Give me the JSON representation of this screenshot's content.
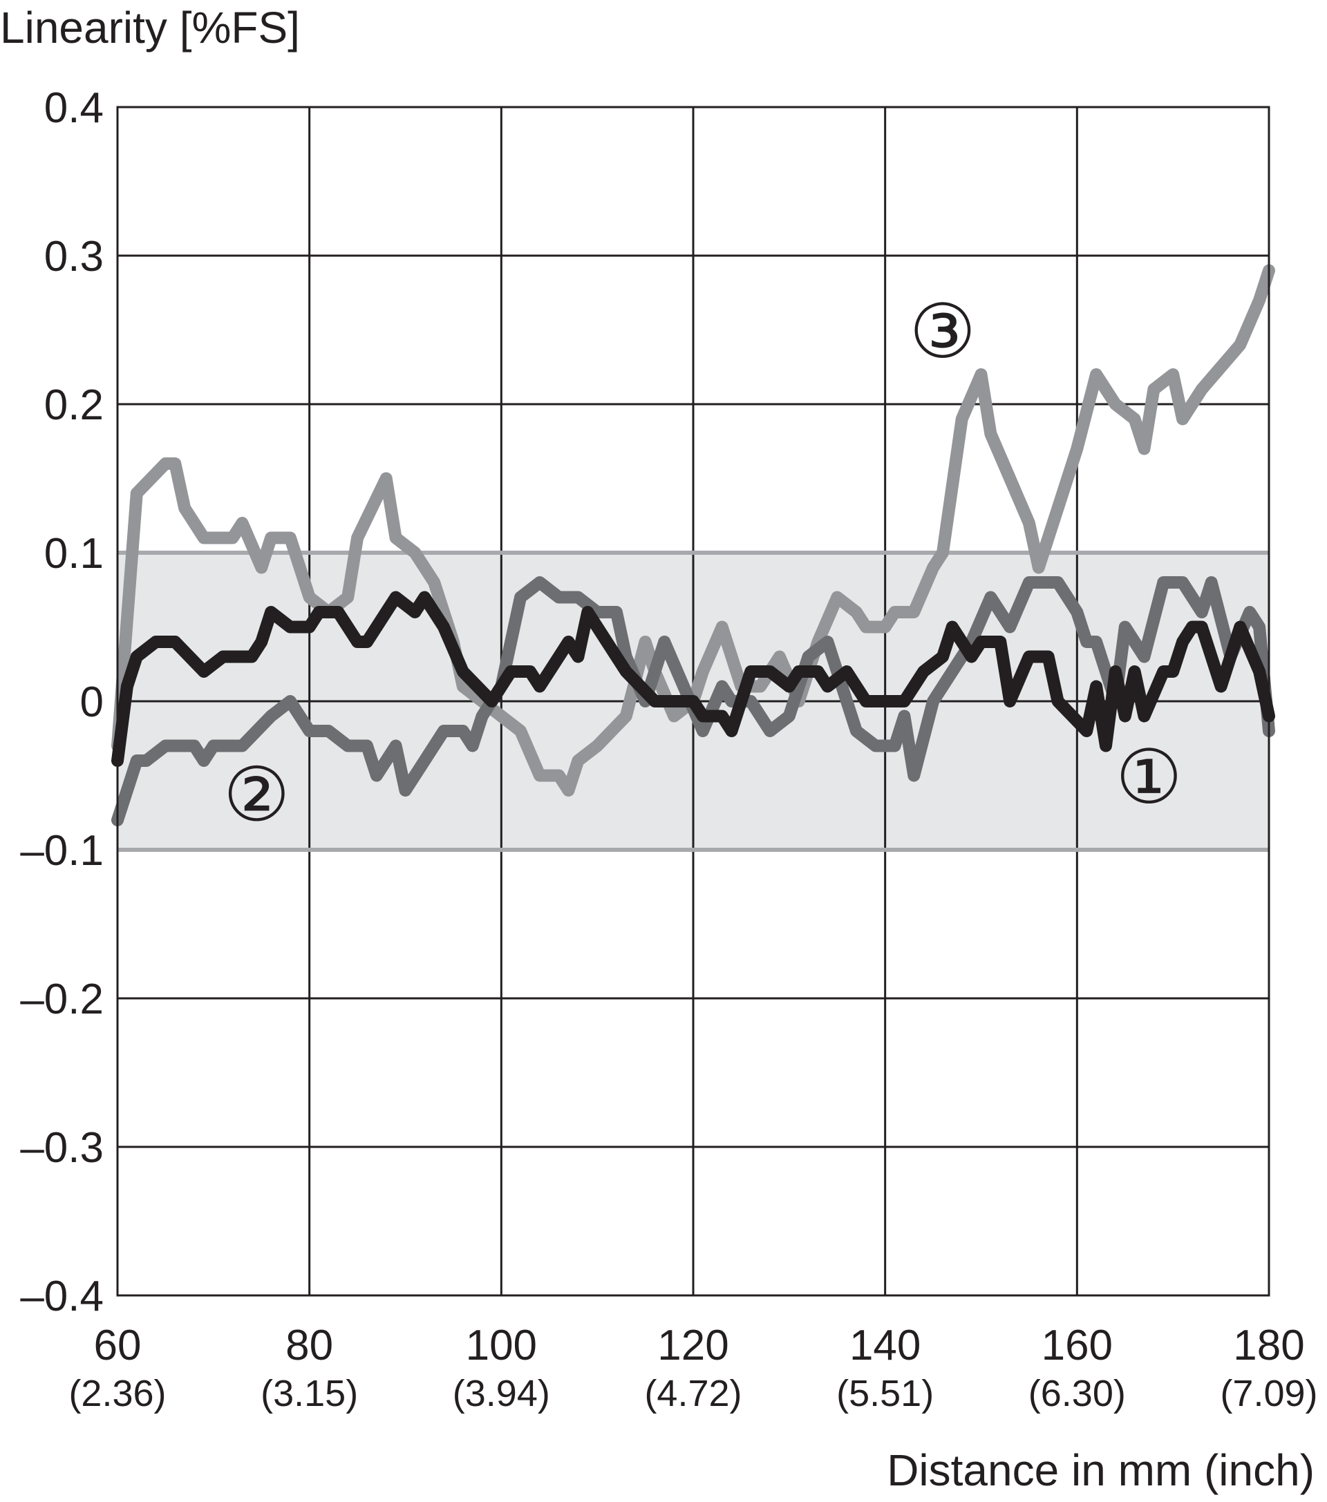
{
  "chart_data": {
    "type": "line",
    "ylabel": "Linearity [%FS]",
    "xlabel": "Distance in mm (inch)",
    "xlim": [
      60,
      180
    ],
    "ylim": [
      -0.4,
      0.4
    ],
    "x_ticks": [
      {
        "value": 60,
        "label": "60",
        "sublabel": "(2.36)"
      },
      {
        "value": 80,
        "label": "80",
        "sublabel": "(3.15)"
      },
      {
        "value": 100,
        "label": "100",
        "sublabel": "(3.94)"
      },
      {
        "value": 120,
        "label": "120",
        "sublabel": "(4.72)"
      },
      {
        "value": 140,
        "label": "140",
        "sublabel": "(5.51)"
      },
      {
        "value": 160,
        "label": "160",
        "sublabel": "(6.30)"
      },
      {
        "value": 180,
        "label": "180",
        "sublabel": "(7.09)"
      }
    ],
    "y_ticks": [
      {
        "value": 0.4,
        "label": "0.4"
      },
      {
        "value": 0.3,
        "label": "0.3"
      },
      {
        "value": 0.2,
        "label": "0.2"
      },
      {
        "value": 0.1,
        "label": "0.1"
      },
      {
        "value": 0,
        "label": "0"
      },
      {
        "value": -0.1,
        "label": "–0.1"
      },
      {
        "value": -0.2,
        "label": "–0.2"
      },
      {
        "value": -0.3,
        "label": "–0.3"
      },
      {
        "value": -0.4,
        "label": "–0.4"
      }
    ],
    "grid": true,
    "tolerance_band": {
      "y_min": -0.1,
      "y_max": 0.1,
      "fill": "#e6e7e8",
      "edge": "#a7a9ac"
    },
    "series": [
      {
        "marker": "③",
        "label_at": {
          "x": 146,
          "y": 0.245
        },
        "color": "#939598",
        "points": [
          [
            60,
            -0.03
          ],
          [
            62,
            0.14
          ],
          [
            65,
            0.16
          ],
          [
            66,
            0.16
          ],
          [
            67,
            0.13
          ],
          [
            69,
            0.11
          ],
          [
            72,
            0.11
          ],
          [
            73,
            0.12
          ],
          [
            75,
            0.09
          ],
          [
            76,
            0.11
          ],
          [
            78,
            0.11
          ],
          [
            80,
            0.07
          ],
          [
            82,
            0.06
          ],
          [
            84,
            0.07
          ],
          [
            85,
            0.11
          ],
          [
            88,
            0.15
          ],
          [
            89,
            0.11
          ],
          [
            91,
            0.1
          ],
          [
            93,
            0.08
          ],
          [
            95,
            0.04
          ],
          [
            96,
            0.01
          ],
          [
            98,
            0.0
          ],
          [
            100,
            -0.01
          ],
          [
            102,
            -0.02
          ],
          [
            104,
            -0.05
          ],
          [
            106,
            -0.05
          ],
          [
            107,
            -0.06
          ],
          [
            108,
            -0.04
          ],
          [
            110,
            -0.03
          ],
          [
            113,
            -0.01
          ],
          [
            115,
            0.04
          ],
          [
            116,
            0.02
          ],
          [
            118,
            -0.01
          ],
          [
            120,
            0.0
          ],
          [
            121,
            0.02
          ],
          [
            123,
            0.05
          ],
          [
            125,
            0.01
          ],
          [
            127,
            0.01
          ],
          [
            129,
            0.03
          ],
          [
            131,
            0.0
          ],
          [
            133,
            0.04
          ],
          [
            135,
            0.07
          ],
          [
            137,
            0.06
          ],
          [
            138,
            0.05
          ],
          [
            140,
            0.05
          ],
          [
            141,
            0.06
          ],
          [
            143,
            0.06
          ],
          [
            145,
            0.09
          ],
          [
            146,
            0.1
          ],
          [
            148,
            0.19
          ],
          [
            150,
            0.22
          ],
          [
            151,
            0.18
          ],
          [
            153,
            0.15
          ],
          [
            155,
            0.12
          ],
          [
            156,
            0.09
          ],
          [
            158,
            0.13
          ],
          [
            160,
            0.17
          ],
          [
            162,
            0.22
          ],
          [
            164,
            0.2
          ],
          [
            166,
            0.19
          ],
          [
            167,
            0.17
          ],
          [
            168,
            0.21
          ],
          [
            170,
            0.22
          ],
          [
            171,
            0.19
          ],
          [
            173,
            0.21
          ],
          [
            177,
            0.24
          ],
          [
            179,
            0.27
          ],
          [
            180,
            0.29
          ]
        ]
      },
      {
        "marker": "②",
        "label_at": {
          "x": 74.5,
          "y": -0.067
        },
        "color": "#6d6e71",
        "points": [
          [
            60,
            -0.08
          ],
          [
            62,
            -0.04
          ],
          [
            63,
            -0.04
          ],
          [
            65,
            -0.03
          ],
          [
            68,
            -0.03
          ],
          [
            69,
            -0.04
          ],
          [
            70,
            -0.03
          ],
          [
            73,
            -0.03
          ],
          [
            76,
            -0.01
          ],
          [
            78,
            0.0
          ],
          [
            80,
            -0.02
          ],
          [
            82,
            -0.02
          ],
          [
            84,
            -0.03
          ],
          [
            86,
            -0.03
          ],
          [
            87,
            -0.05
          ],
          [
            89,
            -0.03
          ],
          [
            90,
            -0.06
          ],
          [
            92,
            -0.04
          ],
          [
            94,
            -0.02
          ],
          [
            96,
            -0.02
          ],
          [
            97,
            -0.03
          ],
          [
            98,
            -0.01
          ],
          [
            100,
            0.01
          ],
          [
            102,
            0.07
          ],
          [
            104,
            0.08
          ],
          [
            106,
            0.07
          ],
          [
            108,
            0.07
          ],
          [
            110,
            0.06
          ],
          [
            112,
            0.06
          ],
          [
            113,
            0.03
          ],
          [
            115,
            0.0
          ],
          [
            117,
            0.04
          ],
          [
            119,
            0.01
          ],
          [
            121,
            -0.02
          ],
          [
            123,
            0.01
          ],
          [
            124,
            0.0
          ],
          [
            126,
            0.0
          ],
          [
            128,
            -0.02
          ],
          [
            130,
            -0.01
          ],
          [
            132,
            0.03
          ],
          [
            134,
            0.04
          ],
          [
            135,
            0.02
          ],
          [
            137,
            -0.02
          ],
          [
            139,
            -0.03
          ],
          [
            141,
            -0.03
          ],
          [
            142,
            -0.01
          ],
          [
            143,
            -0.05
          ],
          [
            145,
            0.0
          ],
          [
            147,
            0.02
          ],
          [
            149,
            0.04
          ],
          [
            151,
            0.07
          ],
          [
            153,
            0.05
          ],
          [
            155,
            0.08
          ],
          [
            158,
            0.08
          ],
          [
            160,
            0.06
          ],
          [
            161,
            0.04
          ],
          [
            162,
            0.04
          ],
          [
            164,
            0.0
          ],
          [
            165,
            0.05
          ],
          [
            167,
            0.03
          ],
          [
            169,
            0.08
          ],
          [
            171,
            0.08
          ],
          [
            173,
            0.06
          ],
          [
            174,
            0.08
          ],
          [
            176,
            0.03
          ],
          [
            178,
            0.06
          ],
          [
            179,
            0.05
          ],
          [
            180,
            -0.02
          ]
        ]
      },
      {
        "marker": "①",
        "label_at": {
          "x": 167.5,
          "y": -0.055
        },
        "color": "#231f20",
        "points": [
          [
            60,
            -0.04
          ],
          [
            61,
            0.01
          ],
          [
            62,
            0.03
          ],
          [
            64,
            0.04
          ],
          [
            66,
            0.04
          ],
          [
            69,
            0.02
          ],
          [
            71,
            0.03
          ],
          [
            74,
            0.03
          ],
          [
            75,
            0.04
          ],
          [
            76,
            0.06
          ],
          [
            78,
            0.05
          ],
          [
            80,
            0.05
          ],
          [
            81,
            0.06
          ],
          [
            83,
            0.06
          ],
          [
            85,
            0.04
          ],
          [
            86,
            0.04
          ],
          [
            88,
            0.06
          ],
          [
            89,
            0.07
          ],
          [
            91,
            0.06
          ],
          [
            92,
            0.07
          ],
          [
            94,
            0.05
          ],
          [
            96,
            0.02
          ],
          [
            99,
            0.0
          ],
          [
            101,
            0.02
          ],
          [
            103,
            0.02
          ],
          [
            104,
            0.01
          ],
          [
            105,
            0.02
          ],
          [
            107,
            0.04
          ],
          [
            108,
            0.03
          ],
          [
            109,
            0.06
          ],
          [
            111,
            0.04
          ],
          [
            113,
            0.02
          ],
          [
            116,
            0.0
          ],
          [
            118,
            0.0
          ],
          [
            120,
            0.0
          ],
          [
            121,
            -0.01
          ],
          [
            123,
            -0.01
          ],
          [
            124,
            -0.02
          ],
          [
            126,
            0.02
          ],
          [
            128,
            0.02
          ],
          [
            130,
            0.01
          ],
          [
            131,
            0.02
          ],
          [
            133,
            0.02
          ],
          [
            134,
            0.01
          ],
          [
            136,
            0.02
          ],
          [
            138,
            0.0
          ],
          [
            140,
            0.0
          ],
          [
            142,
            0.0
          ],
          [
            144,
            0.02
          ],
          [
            146,
            0.03
          ],
          [
            147,
            0.05
          ],
          [
            149,
            0.03
          ],
          [
            150,
            0.04
          ],
          [
            152,
            0.04
          ],
          [
            153,
            0.0
          ],
          [
            155,
            0.03
          ],
          [
            157,
            0.03
          ],
          [
            158,
            0.0
          ],
          [
            161,
            -0.02
          ],
          [
            162,
            0.01
          ],
          [
            163,
            -0.03
          ],
          [
            164,
            0.02
          ],
          [
            165,
            -0.01
          ],
          [
            166,
            0.02
          ],
          [
            167,
            -0.01
          ],
          [
            169,
            0.02
          ],
          [
            170,
            0.02
          ],
          [
            171,
            0.04
          ],
          [
            172,
            0.05
          ],
          [
            173,
            0.05
          ],
          [
            175,
            0.01
          ],
          [
            176,
            0.03
          ],
          [
            177,
            0.05
          ],
          [
            179,
            0.02
          ],
          [
            180,
            -0.01
          ]
        ]
      }
    ]
  }
}
